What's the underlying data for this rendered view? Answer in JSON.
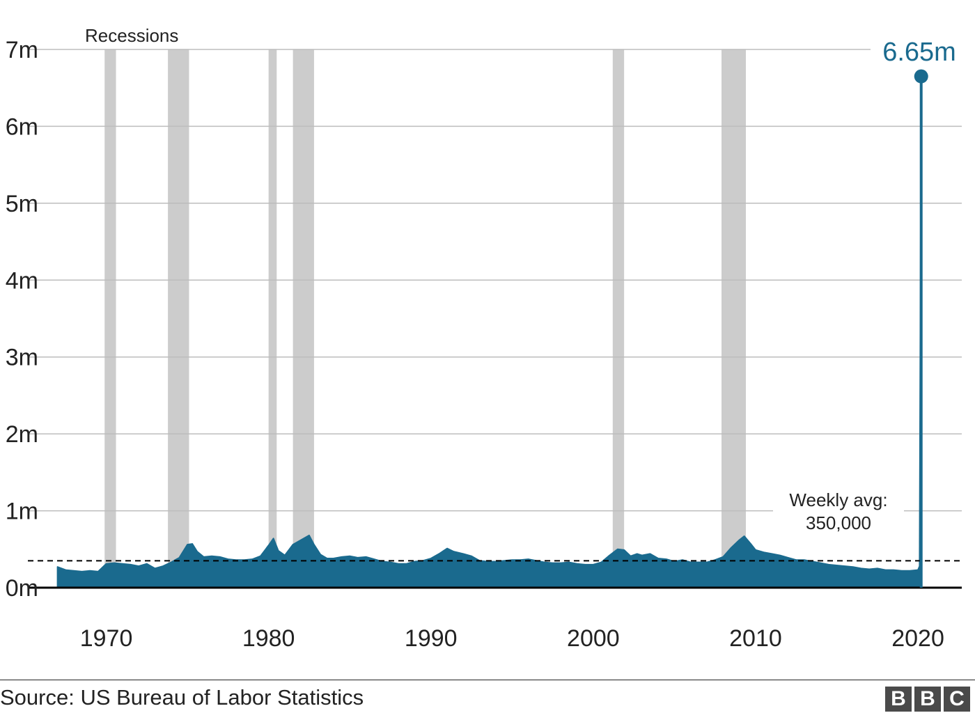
{
  "chart_data": {
    "type": "area",
    "title": "",
    "xlabel": "",
    "ylabel": "",
    "xlim": [
      1965,
      2022.7
    ],
    "ylim": [
      0,
      7000000
    ],
    "y_ticks": [
      {
        "value": 0,
        "label": "0m"
      },
      {
        "value": 1000000,
        "label": "1m"
      },
      {
        "value": 2000000,
        "label": "2m"
      },
      {
        "value": 3000000,
        "label": "3m"
      },
      {
        "value": 4000000,
        "label": "4m"
      },
      {
        "value": 5000000,
        "label": "5m"
      },
      {
        "value": 6000000,
        "label": "6m"
      },
      {
        "value": 7000000,
        "label": "7m"
      }
    ],
    "x_ticks": [
      {
        "value": 1970,
        "label": "1970"
      },
      {
        "value": 1980,
        "label": "1980"
      },
      {
        "value": 1990,
        "label": "1990"
      },
      {
        "value": 2000,
        "label": "2000"
      },
      {
        "value": 2010,
        "label": "2010"
      },
      {
        "value": 2020,
        "label": "2020"
      }
    ],
    "grid": true,
    "colors": {
      "series": "#1a6a8e",
      "recession": "#cccccc",
      "grid": "#bdbdbd",
      "axis": "#000000",
      "reference": "#000000"
    },
    "recession_label": "Recessions",
    "recessions": [
      [
        1969.9,
        1970.6
      ],
      [
        1973.8,
        1975.1
      ],
      [
        1980.0,
        1980.5
      ],
      [
        1981.5,
        1982.8
      ],
      [
        2001.2,
        2001.9
      ],
      [
        2007.9,
        2009.4
      ]
    ],
    "reference_line": {
      "value": 350000,
      "label_line1": "Weekly avg:",
      "label_line2": "350,000"
    },
    "highlight": {
      "x": 2020.2,
      "y": 6650000,
      "label": "6.65m"
    },
    "series": [
      {
        "x": [
          1967.0,
          1967.5,
          1968.0,
          1968.5,
          1969.0,
          1969.5,
          1970.0,
          1970.5,
          1971.0,
          1971.5,
          1972.0,
          1972.5,
          1973.0,
          1973.5,
          1974.0,
          1974.5,
          1975.0,
          1975.3,
          1975.6,
          1976.0,
          1976.5,
          1977.0,
          1977.5,
          1978.0,
          1978.5,
          1979.0,
          1979.5,
          1980.0,
          1980.3,
          1980.6,
          1981.0,
          1981.5,
          1982.0,
          1982.5,
          1982.8,
          1983.2,
          1983.6,
          1984.0,
          1984.5,
          1985.0,
          1985.5,
          1986.0,
          1986.5,
          1987.0,
          1987.5,
          1988.0,
          1988.5,
          1989.0,
          1989.5,
          1990.0,
          1990.5,
          1991.0,
          1991.4,
          1992.0,
          1992.5,
          1993.0,
          1993.5,
          1994.0,
          1994.5,
          1995.0,
          1995.5,
          1996.0,
          1996.5,
          1997.0,
          1997.5,
          1998.0,
          1998.5,
          1999.0,
          1999.5,
          2000.0,
          2000.5,
          2001.0,
          2001.5,
          2001.9,
          2002.3,
          2002.7,
          2003.0,
          2003.5,
          2004.0,
          2004.5,
          2005.0,
          2005.5,
          2006.0,
          2006.5,
          2007.0,
          2007.5,
          2008.0,
          2008.5,
          2009.0,
          2009.3,
          2009.7,
          2010.0,
          2010.5,
          2011.0,
          2011.5,
          2012.0,
          2012.5,
          2013.0,
          2013.5,
          2014.0,
          2014.5,
          2015.0,
          2015.5,
          2016.0,
          2016.5,
          2017.0,
          2017.5,
          2018.0,
          2018.5,
          2019.0,
          2019.5,
          2020.0,
          2020.1,
          2020.2
        ],
        "values": [
          270000,
          230000,
          220000,
          210000,
          220000,
          210000,
          310000,
          320000,
          310000,
          300000,
          280000,
          310000,
          250000,
          280000,
          330000,
          390000,
          560000,
          570000,
          470000,
          400000,
          410000,
          400000,
          370000,
          360000,
          360000,
          370000,
          410000,
          550000,
          640000,
          480000,
          420000,
          560000,
          620000,
          680000,
          560000,
          430000,
          380000,
          380000,
          400000,
          410000,
          390000,
          400000,
          370000,
          340000,
          330000,
          310000,
          310000,
          340000,
          350000,
          380000,
          440000,
          510000,
          470000,
          440000,
          410000,
          350000,
          340000,
          340000,
          350000,
          360000,
          360000,
          370000,
          350000,
          330000,
          320000,
          320000,
          330000,
          310000,
          300000,
          300000,
          330000,
          420000,
          500000,
          490000,
          410000,
          440000,
          420000,
          440000,
          380000,
          370000,
          340000,
          360000,
          330000,
          330000,
          330000,
          360000,
          400000,
          520000,
          620000,
          670000,
          570000,
          490000,
          460000,
          440000,
          420000,
          390000,
          360000,
          360000,
          340000,
          320000,
          300000,
          290000,
          280000,
          270000,
          250000,
          240000,
          250000,
          230000,
          230000,
          220000,
          220000,
          230000,
          280000,
          6650000
        ]
      }
    ]
  },
  "footer": {
    "source": "Source: US Bureau of Labor Statistics",
    "logo_letters": [
      "B",
      "B",
      "C"
    ]
  }
}
